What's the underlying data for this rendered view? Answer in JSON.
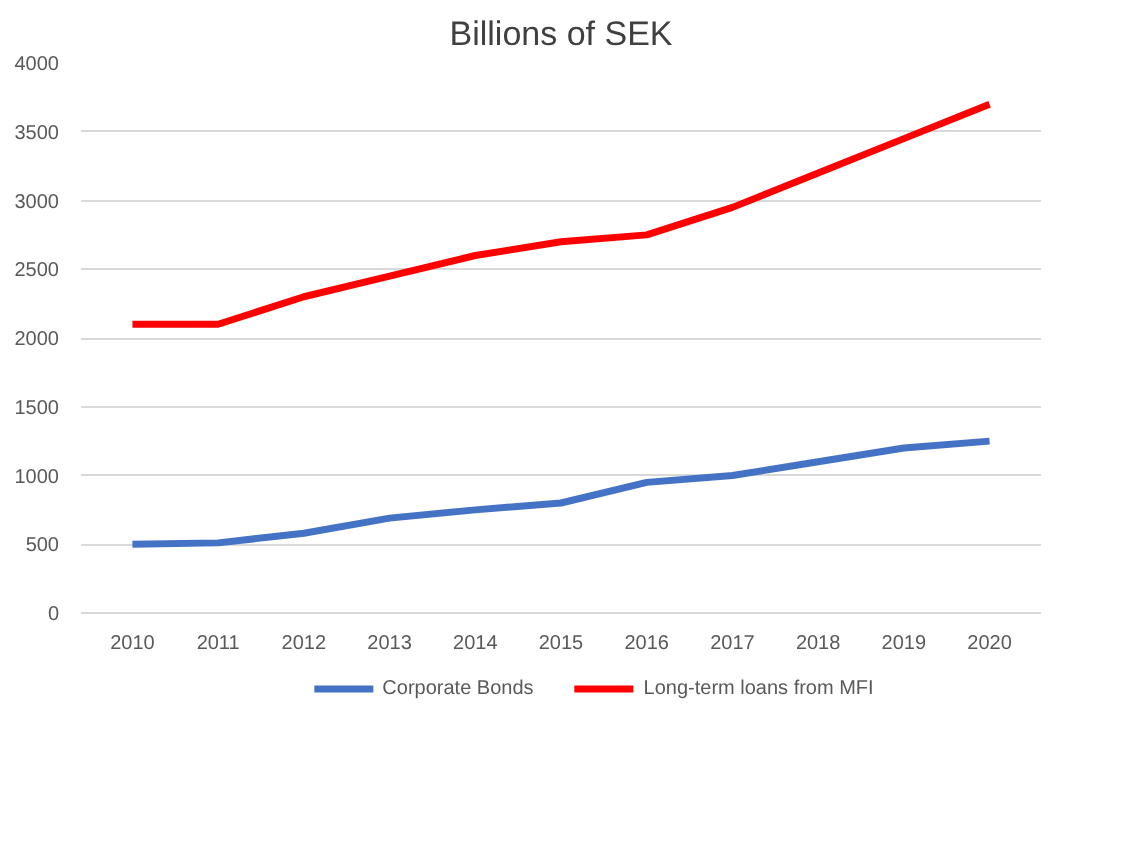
{
  "chart_data": {
    "type": "line",
    "title": "Billions of SEK",
    "categories": [
      "2010",
      "2011",
      "2012",
      "2013",
      "2014",
      "2015",
      "2016",
      "2017",
      "2018",
      "2019",
      "2020"
    ],
    "series": [
      {
        "name": "Corporate Bonds",
        "color": "#4472c4",
        "values": [
          500,
          510,
          580,
          690,
          750,
          800,
          950,
          1000,
          1100,
          1200,
          1250
        ]
      },
      {
        "name": "Long-term loans from MFI",
        "color": "#ff0000",
        "values": [
          2100,
          2100,
          2300,
          2450,
          2600,
          2700,
          2750,
          2950,
          3200,
          3450,
          3700
        ]
      }
    ],
    "ylim": [
      0,
      4000
    ],
    "yticks": [
      0,
      500,
      1000,
      1500,
      2000,
      2500,
      3000,
      3500,
      4000
    ],
    "grid": "y",
    "legend": "bottom",
    "marker": "none",
    "line_style": "solid"
  }
}
